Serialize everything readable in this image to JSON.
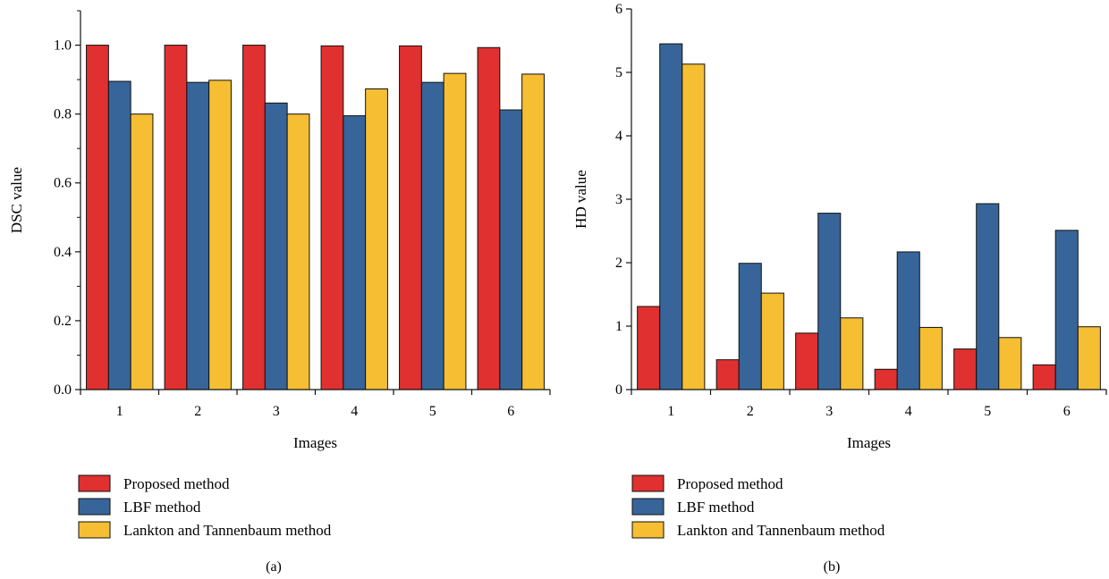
{
  "colors": {
    "proposed": "#e03030",
    "lbf": "#376599",
    "lankton": "#f5be33"
  },
  "chart_data": [
    {
      "type": "bar",
      "panel_label": "(a)",
      "categories": [
        "1",
        "2",
        "3",
        "4",
        "5",
        "6"
      ],
      "series": [
        {
          "name": "Proposed method",
          "values": [
            1.0,
            1.0,
            1.0,
            0.998,
            0.998,
            0.993
          ]
        },
        {
          "name": "LBF method",
          "values": [
            0.895,
            0.892,
            0.832,
            0.795,
            0.892,
            0.812
          ]
        },
        {
          "name": "Lankton and Tannenbaum method",
          "values": [
            0.8,
            0.898,
            0.8,
            0.873,
            0.918,
            0.916
          ]
        }
      ],
      "xlabel": "Images",
      "ylabel": "DSC value",
      "ylim": [
        0,
        1.1
      ],
      "yticks": [
        "0.0",
        "0.2",
        "0.4",
        "0.6",
        "0.8",
        "1.0"
      ],
      "grid": false,
      "legend_position": "bottom"
    },
    {
      "type": "bar",
      "panel_label": "(b)",
      "categories": [
        "1",
        "2",
        "3",
        "4",
        "5",
        "6"
      ],
      "series": [
        {
          "name": "Proposed method",
          "values": [
            1.31,
            0.47,
            0.89,
            0.32,
            0.64,
            0.39
          ]
        },
        {
          "name": "LBF method",
          "values": [
            5.45,
            1.99,
            2.78,
            2.17,
            2.93,
            2.51
          ]
        },
        {
          "name": "Lankton and Tannenbaum method",
          "values": [
            5.13,
            1.52,
            1.13,
            0.98,
            0.82,
            0.99
          ]
        }
      ],
      "xlabel": "Images",
      "ylabel": "HD value",
      "ylim": [
        0,
        6
      ],
      "yticks": [
        "0",
        "1",
        "2",
        "3",
        "4",
        "5",
        "6"
      ],
      "grid": false,
      "legend_position": "bottom"
    }
  ]
}
